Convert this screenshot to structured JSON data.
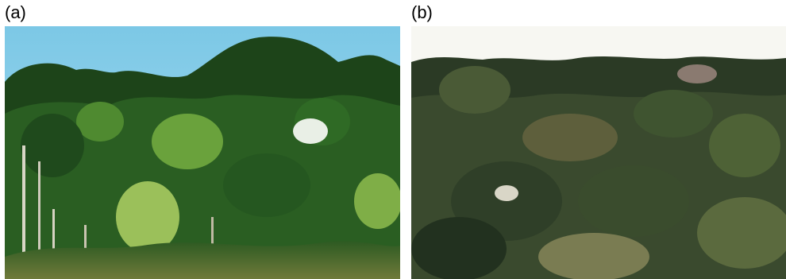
{
  "panels": [
    {
      "label": "(a)",
      "sky_color": "#8fd0e8",
      "canopy_colors": [
        "#1f4a1c",
        "#2f6a25",
        "#3d7f2c",
        "#5c9a3a",
        "#9bbf5a"
      ]
    },
    {
      "label": "(b)",
      "sky_color": "#f7f7f2",
      "canopy_colors": [
        "#1c2a1a",
        "#2f3f28",
        "#415232",
        "#5b6a3e",
        "#8a8a60"
      ]
    }
  ]
}
